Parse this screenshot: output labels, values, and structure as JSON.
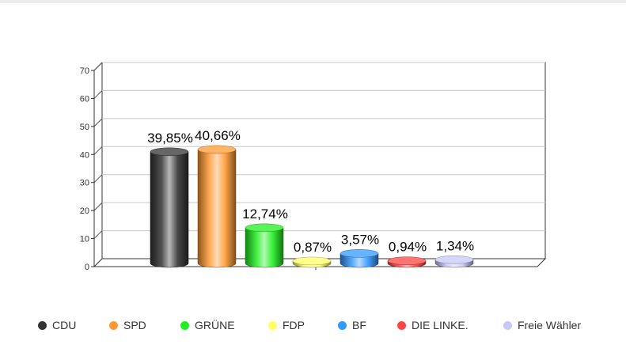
{
  "chart_data": {
    "type": "bar",
    "categories": [
      "CDU",
      "SPD",
      "GRÜNE",
      "FDP",
      "BF",
      "DIE LINKE.",
      "Freie Wähler"
    ],
    "values": [
      39.85,
      40.66,
      12.74,
      0.87,
      3.57,
      0.94,
      1.34
    ],
    "data_labels": [
      "39,85%",
      "40,66%",
      "12,74%",
      "0,87%",
      "3,57%",
      "0,94%",
      "1,34%"
    ],
    "colors": [
      "#333333",
      "#ff9933",
      "#22ee22",
      "#ffff66",
      "#3399ff",
      "#ff4444",
      "#c8c8f8"
    ],
    "ylim": [
      0,
      70
    ],
    "yticks": [
      0,
      10,
      20,
      30,
      40,
      50,
      60,
      70
    ],
    "grid": true,
    "legend_position": "bottom",
    "title": "",
    "xlabel": "",
    "ylabel": ""
  }
}
